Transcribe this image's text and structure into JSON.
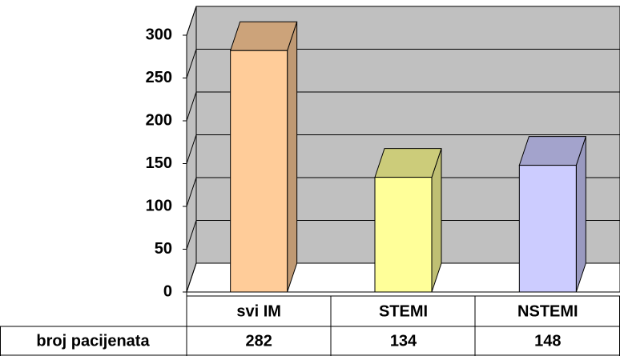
{
  "chart_data": {
    "type": "bar3d",
    "categories": [
      "svi IM",
      "STEMI",
      "NSTEMI"
    ],
    "series": [
      {
        "name": "broj pacijenata",
        "values": [
          282,
          134,
          148
        ],
        "colors": [
          "#ffcc99",
          "#ffff99",
          "#ccccff"
        ]
      }
    ],
    "ylim": [
      0,
      300
    ],
    "yticks": [
      0,
      50,
      100,
      150,
      200,
      250,
      300
    ],
    "grid": true
  }
}
